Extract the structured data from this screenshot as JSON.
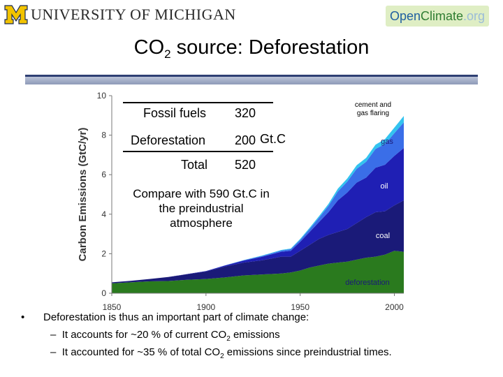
{
  "header": {
    "university": "UNIVERSITY OF MICHIGAN",
    "badge": {
      "open": "Open",
      "climate": "Climate",
      "org": ".org"
    }
  },
  "slide": {
    "title_prefix": "CO",
    "title_sub": "2",
    "title_suffix": " source: Deforestation"
  },
  "overlay_table": {
    "rows": [
      {
        "label": "Fossil fuels",
        "value": "320"
      },
      {
        "label": "Deforestation",
        "value": "200"
      },
      {
        "label": "Total",
        "value": "520"
      }
    ],
    "unit": "Gt.C"
  },
  "compare_text": "Compare with 590 Gt.C in the preindustrial atmosphere",
  "bullets": {
    "main": "Deforestation is thus an important part of climate change:",
    "sub1_a": "It accounts for ~20 % of current CO",
    "sub1_sub": "2",
    "sub1_b": " emissions",
    "sub2_a": "It accounted for ~35 % of total CO",
    "sub2_sub": "2",
    "sub2_b": " emissions since preindustrial times."
  },
  "chart_data": {
    "type": "area",
    "stacked": true,
    "title": "",
    "xlabel": "",
    "ylabel": "Carbon Emissions (GtC/yr)",
    "xlim": [
      1850,
      2005
    ],
    "ylim": [
      0,
      10
    ],
    "xticks": [
      1850,
      1900,
      1950,
      2000
    ],
    "yticks": [
      0,
      2,
      4,
      6,
      8,
      10
    ],
    "x": [
      1850,
      1860,
      1870,
      1880,
      1890,
      1900,
      1910,
      1920,
      1930,
      1940,
      1945,
      1950,
      1955,
      1960,
      1965,
      1970,
      1975,
      1980,
      1985,
      1990,
      1995,
      2000,
      2005
    ],
    "series": [
      {
        "name": "deforestation",
        "color": "#2a7a1e",
        "values": [
          0.5,
          0.55,
          0.6,
          0.62,
          0.68,
          0.72,
          0.8,
          0.9,
          0.95,
          1.0,
          1.05,
          1.15,
          1.3,
          1.4,
          1.5,
          1.55,
          1.6,
          1.7,
          1.8,
          1.85,
          1.95,
          2.15,
          2.1
        ]
      },
      {
        "name": "coal",
        "color": "#1a1a78",
        "values": [
          0.05,
          0.08,
          0.12,
          0.2,
          0.28,
          0.38,
          0.55,
          0.65,
          0.72,
          0.85,
          0.8,
          1.0,
          1.15,
          1.35,
          1.45,
          1.55,
          1.65,
          1.85,
          2.05,
          2.25,
          2.2,
          2.3,
          2.6
        ]
      },
      {
        "name": "oil",
        "color": "#1f1fb4",
        "values": [
          0.0,
          0.0,
          0.0,
          0.0,
          0.01,
          0.02,
          0.05,
          0.1,
          0.18,
          0.25,
          0.3,
          0.45,
          0.65,
          0.85,
          1.15,
          1.6,
          1.85,
          2.05,
          2.0,
          2.25,
          2.35,
          2.5,
          2.65
        ]
      },
      {
        "name": "gas",
        "color": "#3a6ee8",
        "values": [
          0.0,
          0.0,
          0.0,
          0.0,
          0.0,
          0.0,
          0.01,
          0.02,
          0.04,
          0.06,
          0.08,
          0.1,
          0.15,
          0.22,
          0.32,
          0.45,
          0.55,
          0.7,
          0.8,
          0.95,
          1.05,
          1.15,
          1.3
        ]
      },
      {
        "name": "cement and gas flaring",
        "color": "#33c3ef",
        "values": [
          0.0,
          0.0,
          0.0,
          0.0,
          0.0,
          0.0,
          0.0,
          0.01,
          0.02,
          0.03,
          0.03,
          0.05,
          0.06,
          0.08,
          0.1,
          0.14,
          0.16,
          0.18,
          0.2,
          0.22,
          0.25,
          0.28,
          0.32
        ]
      }
    ],
    "labels": {
      "cement": "cement and gas flaring",
      "gas": "gas",
      "oil": "oil",
      "coal": "coal",
      "deforestation": "deforestation"
    },
    "label_colors": {
      "light": "#ffffff",
      "dark": "#1a1a78",
      "cement": "#000000"
    }
  }
}
